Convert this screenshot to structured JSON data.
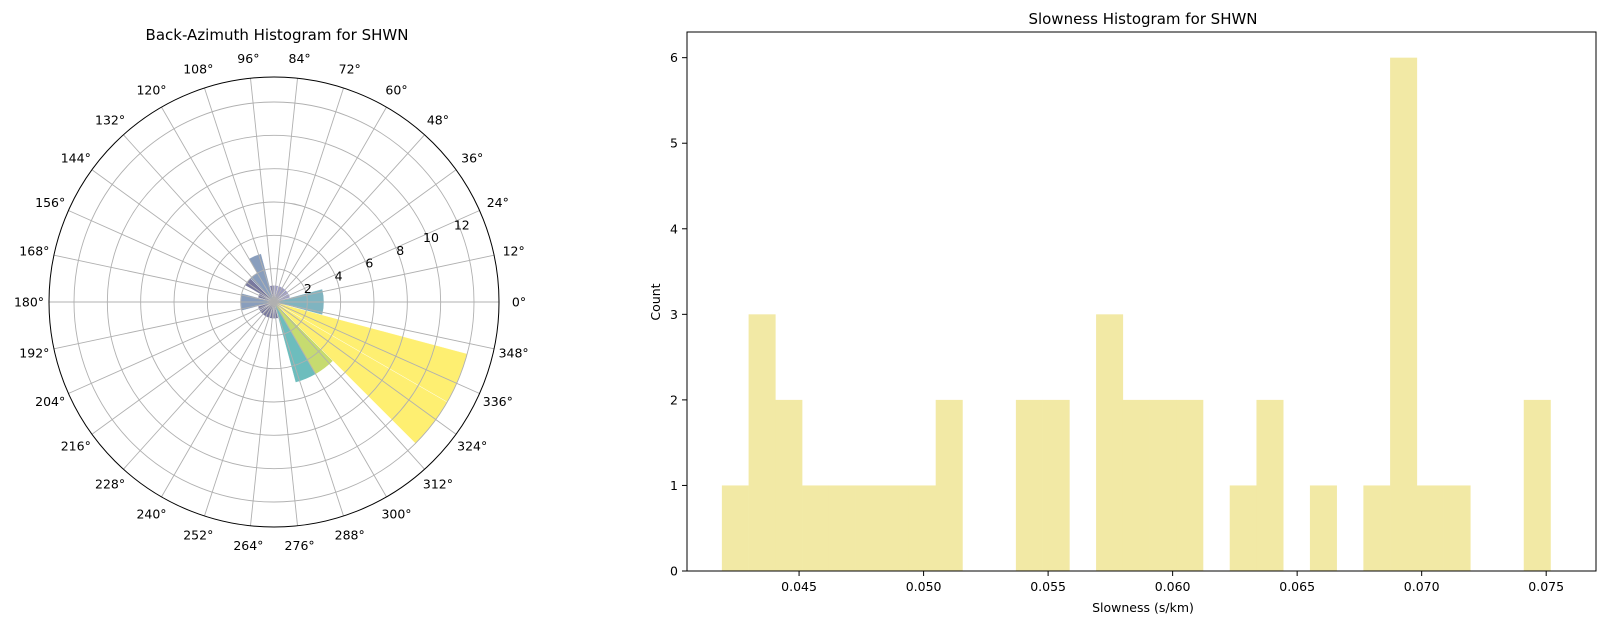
{
  "chart_data": [
    {
      "type": "polar-bar",
      "title": "Back-Azimuth Histogram for SHWN",
      "theta_tick_labels": [
        "0°",
        "12°",
        "24°",
        "36°",
        "48°",
        "60°",
        "72°",
        "84°",
        "96°",
        "108°",
        "120°",
        "132°",
        "144°",
        "156°",
        "168°",
        "180°",
        "192°",
        "204°",
        "216°",
        "228°",
        "240°",
        "252°",
        "264°",
        "276°",
        "288°",
        "300°",
        "312°",
        "324°",
        "336°",
        "348°"
      ],
      "r_tick_labels": [
        "2",
        "4",
        "6",
        "8",
        "10",
        "12"
      ],
      "r_label_angle_deg": 22.5,
      "rlim": [
        0,
        13.5
      ],
      "grid": true,
      "bin_width_deg": 15,
      "bars": [
        {
          "theta_start": 345,
          "count": 3,
          "color": "#3b8c9e"
        },
        {
          "theta_start": 0,
          "count": 3,
          "color": "#3b8c9e"
        },
        {
          "theta_start": 15,
          "count": 1,
          "color": "#6b6aa6"
        },
        {
          "theta_start": 30,
          "count": 1,
          "color": "#6b6aa6"
        },
        {
          "theta_start": 45,
          "count": 1,
          "color": "#6b6aa6"
        },
        {
          "theta_start": 60,
          "count": 1,
          "color": "#6b6aa6"
        },
        {
          "theta_start": 75,
          "count": 1,
          "color": "#6b6aa6"
        },
        {
          "theta_start": 90,
          "count": 1,
          "color": "#44407a"
        },
        {
          "theta_start": 105,
          "count": 3,
          "color": "#4a6a9a"
        },
        {
          "theta_start": 120,
          "count": 2,
          "color": "#4a6a9a"
        },
        {
          "theta_start": 135,
          "count": 2,
          "color": "#2f2f6a"
        },
        {
          "theta_start": 150,
          "count": 1,
          "color": "#2f2f6a"
        },
        {
          "theta_start": 165,
          "count": 2,
          "color": "#4a6a9a"
        },
        {
          "theta_start": 180,
          "count": 2,
          "color": "#4a6a9a"
        },
        {
          "theta_start": 195,
          "count": 1,
          "color": "#2f2f6a"
        },
        {
          "theta_start": 210,
          "count": 1,
          "color": "#2f2f6a"
        },
        {
          "theta_start": 225,
          "count": 1,
          "color": "#2f2f6a"
        },
        {
          "theta_start": 240,
          "count": 1,
          "color": "#2f2f6a"
        },
        {
          "theta_start": 255,
          "count": 1,
          "color": "#2f2f6a"
        },
        {
          "theta_start": 270,
          "count": 1,
          "color": "#2f2f6a"
        },
        {
          "theta_start": 285,
          "count": 5,
          "color": "#1f9a9a"
        },
        {
          "theta_start": 300,
          "count": 5,
          "color": "#a8c823"
        },
        {
          "theta_start": 315,
          "count": 12,
          "color": "#fde725"
        },
        {
          "theta_start": 330,
          "count": 12,
          "color": "#fde725"
        }
      ]
    },
    {
      "type": "bar",
      "title": "Slowness Histogram for SHWN",
      "xlabel": "Slowness (s/km)",
      "ylabel": "Count",
      "xlim": [
        0.0405,
        0.077
      ],
      "ylim": [
        0,
        6.3
      ],
      "x_ticks": [
        0.045,
        0.05,
        0.055,
        0.06,
        0.065,
        0.07,
        0.075
      ],
      "x_tick_labels": [
        "0.045",
        "0.050",
        "0.055",
        "0.060",
        "0.065",
        "0.070",
        "0.075"
      ],
      "y_ticks": [
        0,
        1,
        2,
        3,
        4,
        5,
        6
      ],
      "y_tick_labels": [
        "0",
        "1",
        "2",
        "3",
        "4",
        "5",
        "6"
      ],
      "bar_color": "#f2e9a5",
      "bin_start": 0.0419,
      "bin_width": 0.0010733,
      "values": [
        1,
        3,
        2,
        1,
        1,
        1,
        1,
        1,
        2,
        0,
        0,
        2,
        2,
        0,
        3,
        2,
        2,
        2,
        0,
        1,
        2,
        0,
        1,
        0,
        1,
        6,
        1,
        1,
        0,
        0,
        2
      ]
    }
  ]
}
